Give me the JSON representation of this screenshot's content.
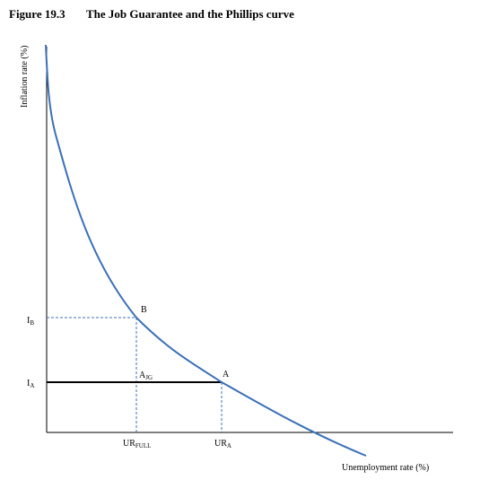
{
  "figure": {
    "number": "Figure 19.3",
    "title": "The Job Guarantee and the Phillips curve"
  },
  "axes": {
    "y_label": "Inflation rate (%)",
    "x_label": "Unemployment rate (%)"
  },
  "y_ticks": [
    {
      "main": "I",
      "sub": "B"
    },
    {
      "main": "I",
      "sub": "A"
    }
  ],
  "x_ticks": [
    {
      "main": "UR",
      "sub": "FULL"
    },
    {
      "main": "UR",
      "sub": "A"
    }
  ],
  "points": {
    "b": {
      "main": "B",
      "sub": ""
    },
    "a": {
      "main": "A",
      "sub": ""
    },
    "ajg": {
      "main": "A",
      "sub": "JG"
    }
  },
  "colors": {
    "curve": "#3B70B8",
    "axes": "#000000",
    "dashed": "#3B70B8",
    "job_guarantee_line": "#000000"
  }
}
